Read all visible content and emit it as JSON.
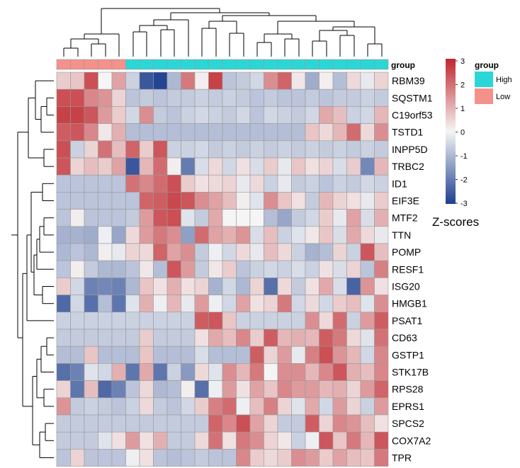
{
  "chart_data": {
    "type": "heatmap",
    "columns": 24,
    "rows": [
      "RBM39",
      "SQSTM1",
      "C19orf53",
      "TSTD1",
      "INPP5D",
      "TRBC2",
      "ID1",
      "EIF3E",
      "MTF2",
      "TTN",
      "POMP",
      "RESF1",
      "ISG20",
      "HMGB1",
      "PSAT1",
      "CD63",
      "GSTP1",
      "STK17B",
      "RPS28",
      "EPRS1",
      "SPCS2",
      "COX7A2",
      "TPR"
    ],
    "annotation": {
      "label": "group",
      "values": [
        "Low",
        "Low",
        "Low",
        "Low",
        "Low",
        "High",
        "High",
        "High",
        "High",
        "High",
        "High",
        "High",
        "High",
        "High",
        "High",
        "High",
        "High",
        "High",
        "High",
        "High",
        "High",
        "High",
        "High",
        "High"
      ]
    },
    "legend": {
      "title": "group",
      "entries": [
        {
          "name": "High",
          "color": "#2ad7d6"
        },
        {
          "name": "Low",
          "color": "#f4918a"
        }
      ]
    },
    "colorbar": {
      "ticks": [
        "3",
        "2",
        "1",
        "0",
        "-1",
        "-2",
        "-3"
      ],
      "low_color": "#1d3f8f",
      "mid_color": "#f5f5f5",
      "high_color": "#c0262c",
      "range": [
        -3,
        3
      ]
    },
    "scale_label": "Z-scores",
    "values": [
      [
        0.6,
        0.7,
        2.4,
        0.0,
        1.2,
        -0.6,
        -2.6,
        -2.9,
        -1.0,
        1.8,
        0.1,
        2.6,
        -0.8,
        -0.7,
        -0.5,
        1.5,
        2.1,
        0.2,
        -1.2,
        0.1,
        -0.9,
        0.4,
        -0.2,
        0.5
      ],
      [
        2.4,
        2.4,
        1.6,
        1.4,
        0.5,
        -0.8,
        -0.7,
        -0.8,
        -0.7,
        -0.7,
        -0.6,
        -0.7,
        -0.6,
        -0.7,
        -0.8,
        -0.7,
        -0.8,
        -0.8,
        -0.7,
        -0.8,
        -0.7,
        -0.7,
        -0.6,
        -0.7
      ],
      [
        2.6,
        2.6,
        2.3,
        1.3,
        0.6,
        -0.5,
        1.5,
        -0.7,
        -0.8,
        -0.6,
        -0.5,
        -0.6,
        -0.7,
        -0.5,
        -0.8,
        -0.5,
        -0.6,
        -0.7,
        -0.5,
        1.1,
        0.8,
        -0.6,
        -0.5,
        0.9
      ],
      [
        2.2,
        2.3,
        1.6,
        0.2,
        1.0,
        -0.9,
        -0.9,
        -0.9,
        -0.9,
        -0.9,
        -0.9,
        -0.9,
        -0.9,
        -0.9,
        -0.9,
        -0.9,
        -0.9,
        -0.9,
        0.7,
        0.4,
        0.9,
        2.0,
        0.4,
        1.5
      ],
      [
        2.4,
        -0.6,
        0.5,
        1.9,
        0.8,
        2.1,
        0.6,
        2.3,
        -0.6,
        -0.6,
        -0.5,
        -0.7,
        -0.6,
        -0.7,
        -0.6,
        -0.7,
        -0.6,
        -0.7,
        -0.6,
        -0.7,
        -0.6,
        -0.7,
        -0.6,
        -0.7
      ],
      [
        2.3,
        0.5,
        0.8,
        0.6,
        1.2,
        -2.6,
        0.9,
        2.0,
        0.1,
        -2.0,
        -0.4,
        0.4,
        -0.5,
        0.3,
        -0.4,
        0.6,
        -0.2,
        0.7,
        0.3,
        0.5,
        -0.4,
        0.6,
        -1.8,
        0.9
      ],
      [
        -0.8,
        -0.8,
        -0.8,
        -0.8,
        -0.8,
        1.9,
        1.6,
        2.0,
        2.4,
        0.6,
        0.3,
        0.4,
        0.5,
        -0.2,
        0.4,
        -0.6,
        -0.2,
        -0.7,
        -0.6,
        -0.8,
        -0.6,
        -0.7,
        -0.5,
        -0.6
      ],
      [
        -0.8,
        -0.8,
        -0.8,
        -0.8,
        -0.8,
        -0.8,
        2.1,
        2.2,
        2.5,
        2.3,
        1.5,
        1.2,
        0.8,
        0.1,
        -0.3,
        1.5,
        0.7,
        0.3,
        -0.7,
        0.9,
        0.5,
        0.3,
        -0.2,
        0.6
      ],
      [
        -0.8,
        0.1,
        -0.8,
        -0.8,
        -0.8,
        -0.7,
        1.3,
        2.3,
        2.4,
        -0.3,
        -0.7,
        1.1,
        0.0,
        0.0,
        0.0,
        -0.9,
        -1.3,
        -0.7,
        -0.5,
        0.6,
        -0.2,
        1.2,
        -0.4,
        1.0
      ],
      [
        -1.1,
        -1.1,
        -1.2,
        -0.1,
        -1.3,
        0.4,
        1.3,
        1.8,
        1.5,
        -1.4,
        2.0,
        1.2,
        1.0,
        1.4,
        -0.4,
        0.8,
        -0.6,
        -0.3,
        0.2,
        0.7,
        -0.4,
        1.1,
        0.4,
        -0.2
      ],
      [
        -1.0,
        -0.8,
        -1.0,
        0.1,
        -0.2,
        0.5,
        0.4,
        2.1,
        1.2,
        1.5,
        -0.7,
        -0.1,
        -0.5,
        0.4,
        -0.2,
        0.8,
        0.4,
        -0.6,
        -1.1,
        -0.9,
        0.5,
        -0.6,
        2.3,
        0.8
      ],
      [
        -0.8,
        0.1,
        -0.7,
        -1.0,
        -1.0,
        -0.8,
        0.2,
        -0.9,
        2.3,
        1.3,
        -0.7,
        0.2,
        0.6,
        -0.8,
        -0.6,
        -0.5,
        -0.6,
        -0.4,
        -0.6,
        0.3,
        -0.4,
        0.5,
        -0.8,
        1.7
      ],
      [
        0.6,
        -0.5,
        -1.9,
        -1.8,
        -1.9,
        -1.0,
        0.7,
        0.3,
        1.0,
        0.3,
        0.5,
        -1.1,
        -0.5,
        -1.0,
        0.5,
        -2.2,
        0.4,
        -0.7,
        0.3,
        1.1,
        -0.4,
        -2.4,
        1.4,
        0.3
      ],
      [
        -2.3,
        -0.5,
        -2.2,
        -0.9,
        -2.1,
        -0.3,
        1.0,
        -0.1,
        0.9,
        -0.2,
        1.3,
        -0.1,
        -0.5,
        1.2,
        0.3,
        0.5,
        1.8,
        -0.5,
        0.4,
        -0.5,
        0.6,
        0.8,
        -0.3,
        1.5
      ],
      [
        -0.6,
        -0.6,
        -0.6,
        -0.6,
        -0.6,
        -0.6,
        -0.6,
        -0.6,
        -0.6,
        -0.6,
        2.2,
        2.3,
        0.7,
        -0.6,
        -0.6,
        -0.6,
        -0.6,
        -0.6,
        1.5,
        0.4,
        2.0,
        -0.6,
        1.3,
        2.2
      ],
      [
        -0.7,
        -0.7,
        -0.7,
        -0.7,
        -0.7,
        -0.7,
        0.6,
        -0.7,
        -0.7,
        -0.7,
        0.3,
        1.1,
        0.8,
        1.6,
        0.6,
        2.2,
        0.9,
        1.0,
        0.9,
        2.2,
        1.8,
        0.4,
        -0.3,
        1.9
      ],
      [
        -0.9,
        -0.9,
        0.7,
        -0.9,
        -0.9,
        -0.9,
        0.7,
        -0.9,
        -0.9,
        -0.9,
        -0.4,
        -0.9,
        -0.9,
        -0.9,
        2.2,
        0.5,
        1.3,
        -0.2,
        1.7,
        2.4,
        1.4,
        0.9,
        -0.5,
        1.6
      ],
      [
        -2.2,
        -1.9,
        -0.3,
        -0.5,
        1.0,
        -2.1,
        1.1,
        -2.1,
        -0.6,
        -1.5,
        0.4,
        -0.3,
        1.5,
        0.9,
        1.8,
        0.0,
        1.5,
        1.5,
        0.9,
        1.6,
        2.3,
        1.0,
        0.8,
        1.6
      ],
      [
        0.5,
        -2.1,
        0.8,
        -2.3,
        -1.9,
        -0.8,
        0.4,
        -1.0,
        -0.9,
        0.1,
        -2.2,
        -0.1,
        1.3,
        0.3,
        1.2,
        0.7,
        1.6,
        1.3,
        1.3,
        0.9,
        1.0,
        0.5,
        1.3,
        2.1
      ],
      [
        1.4,
        -0.7,
        -0.6,
        -0.7,
        -0.8,
        -0.6,
        0.4,
        -0.7,
        -0.8,
        -0.5,
        0.6,
        1.7,
        2.0,
        -0.1,
        0.8,
        1.7,
        0.5,
        -0.3,
        1.1,
        -0.5,
        1.3,
        0.5,
        -0.6,
        1.3
      ],
      [
        -0.7,
        -0.7,
        -0.7,
        -0.7,
        -0.7,
        -0.7,
        -0.7,
        -0.7,
        -0.7,
        -0.7,
        -0.7,
        2.1,
        1.6,
        2.4,
        1.2,
        0.5,
        -0.7,
        -0.7,
        2.2,
        0.5,
        1.6,
        1.4,
        0.8,
        0.3
      ],
      [
        -0.7,
        -0.7,
        -0.7,
        -0.3,
        0.3,
        1.3,
        0.3,
        1.0,
        -0.7,
        -0.7,
        0.4,
        1.9,
        0.3,
        1.8,
        1.5,
        0.5,
        0.2,
        -0.6,
        -0.1,
        2.3,
        0.7,
        1.8,
        0.9,
        2.3
      ],
      [
        -0.8,
        0.5,
        -0.8,
        -0.8,
        -0.8,
        -0.1,
        0.3,
        -0.8,
        -0.9,
        -0.8,
        -0.7,
        -0.8,
        -0.8,
        1.6,
        0.6,
        0.4,
        0.6,
        1.5,
        1.3,
        0.6,
        1.2,
        0.8,
        0.7,
        1.8
      ]
    ]
  }
}
